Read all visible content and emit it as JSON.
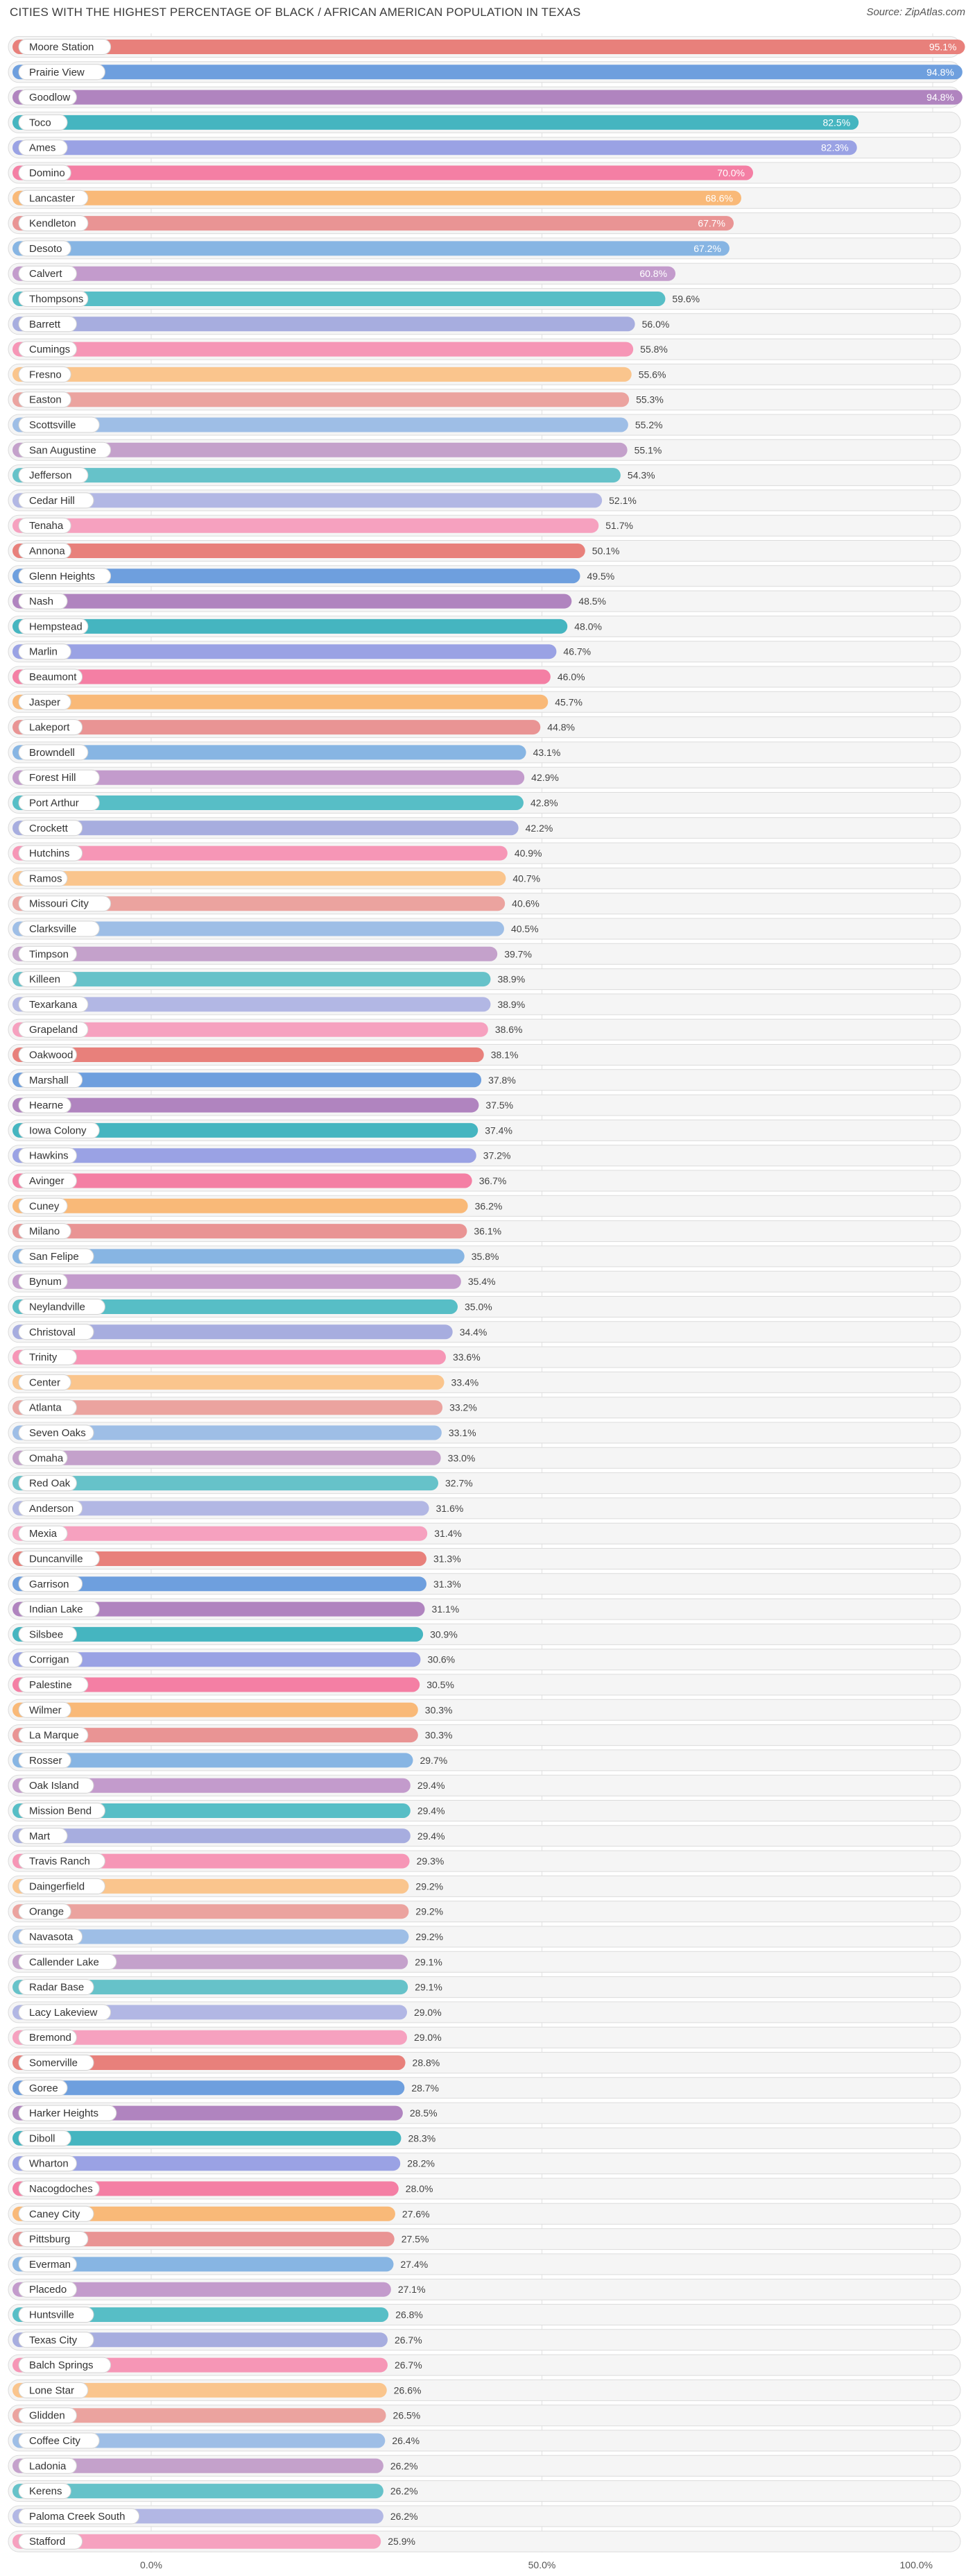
{
  "chart_data": {
    "type": "bar",
    "orientation": "horizontal",
    "title": "CITIES WITH THE HIGHEST PERCENTAGE OF BLACK / AFRICAN AMERICAN POPULATION IN TEXAS",
    "source": "Source: ZipAtlas.com",
    "xlim": [
      0,
      100
    ],
    "x_ticks": [
      "0.0%",
      "50.0%",
      "100.0%"
    ],
    "categories": [
      "Moore Station",
      "Prairie View",
      "Goodlow",
      "Toco",
      "Ames",
      "Domino",
      "Lancaster",
      "Kendleton",
      "Desoto",
      "Calvert",
      "Thompsons",
      "Barrett",
      "Cumings",
      "Fresno",
      "Easton",
      "Scottsville",
      "San Augustine",
      "Jefferson",
      "Cedar Hill",
      "Tenaha",
      "Annona",
      "Glenn Heights",
      "Nash",
      "Hempstead",
      "Marlin",
      "Beaumont",
      "Jasper",
      "Lakeport",
      "Browndell",
      "Forest Hill",
      "Port Arthur",
      "Crockett",
      "Hutchins",
      "Ramos",
      "Missouri City",
      "Clarksville",
      "Timpson",
      "Killeen",
      "Texarkana",
      "Grapeland",
      "Oakwood",
      "Marshall",
      "Hearne",
      "Iowa Colony",
      "Hawkins",
      "Avinger",
      "Cuney",
      "Milano",
      "San Felipe",
      "Bynum",
      "Neylandville",
      "Christoval",
      "Trinity",
      "Center",
      "Atlanta",
      "Seven Oaks",
      "Omaha",
      "Red Oak",
      "Anderson",
      "Mexia",
      "Duncanville",
      "Garrison",
      "Indian Lake",
      "Silsbee",
      "Corrigan",
      "Palestine",
      "Wilmer",
      "La Marque",
      "Rosser",
      "Oak Island",
      "Mission Bend",
      "Mart",
      "Travis Ranch",
      "Daingerfield",
      "Orange",
      "Navasota",
      "Callender Lake",
      "Radar Base",
      "Lacy Lakeview",
      "Bremond",
      "Somerville",
      "Goree",
      "Harker Heights",
      "Diboll",
      "Wharton",
      "Nacogdoches",
      "Caney City",
      "Pittsburg",
      "Everman",
      "Placedo",
      "Huntsville",
      "Texas City",
      "Balch Springs",
      "Lone Star",
      "Glidden",
      "Coffee City",
      "Ladonia",
      "Kerens",
      "Paloma Creek South",
      "Stafford"
    ],
    "values": [
      95.1,
      94.8,
      94.8,
      82.5,
      82.3,
      70.0,
      68.6,
      67.7,
      67.2,
      60.8,
      59.6,
      56.0,
      55.8,
      55.6,
      55.3,
      55.2,
      55.1,
      54.3,
      52.1,
      51.7,
      50.1,
      49.5,
      48.5,
      48.0,
      46.7,
      46.0,
      45.7,
      44.8,
      43.1,
      42.9,
      42.8,
      42.2,
      40.9,
      40.7,
      40.6,
      40.5,
      39.7,
      38.9,
      38.9,
      38.6,
      38.1,
      37.8,
      37.5,
      37.4,
      37.2,
      36.7,
      36.2,
      36.1,
      35.8,
      35.4,
      35.0,
      34.4,
      33.6,
      33.4,
      33.2,
      33.1,
      33.0,
      32.7,
      31.6,
      31.4,
      31.3,
      31.3,
      31.1,
      30.9,
      30.6,
      30.5,
      30.3,
      30.3,
      29.7,
      29.4,
      29.4,
      29.4,
      29.3,
      29.2,
      29.2,
      29.2,
      29.1,
      29.1,
      29.0,
      29.0,
      28.8,
      28.7,
      28.5,
      28.3,
      28.2,
      28.0,
      27.6,
      27.5,
      27.4,
      27.1,
      26.8,
      26.7,
      26.7,
      26.6,
      26.5,
      26.4,
      26.2,
      26.2,
      26.2,
      25.9
    ],
    "value_labels": [
      "95.1%",
      "94.8%",
      "94.8%",
      "82.5%",
      "82.3%",
      "70.0%",
      "68.6%",
      "67.7%",
      "67.2%",
      "60.8%",
      "59.6%",
      "56.0%",
      "55.8%",
      "55.6%",
      "55.3%",
      "55.2%",
      "55.1%",
      "54.3%",
      "52.1%",
      "51.7%",
      "50.1%",
      "49.5%",
      "48.5%",
      "48.0%",
      "46.7%",
      "46.0%",
      "45.7%",
      "44.8%",
      "43.1%",
      "42.9%",
      "42.8%",
      "42.2%",
      "40.9%",
      "40.7%",
      "40.6%",
      "40.5%",
      "39.7%",
      "38.9%",
      "38.9%",
      "38.6%",
      "38.1%",
      "37.8%",
      "37.5%",
      "37.4%",
      "37.2%",
      "36.7%",
      "36.2%",
      "36.1%",
      "35.8%",
      "35.4%",
      "35.0%",
      "34.4%",
      "33.6%",
      "33.4%",
      "33.2%",
      "33.1%",
      "33.0%",
      "32.7%",
      "31.6%",
      "31.4%",
      "31.3%",
      "31.3%",
      "31.1%",
      "30.9%",
      "30.6%",
      "30.5%",
      "30.3%",
      "30.3%",
      "29.7%",
      "29.4%",
      "29.4%",
      "29.4%",
      "29.3%",
      "29.2%",
      "29.2%",
      "29.2%",
      "29.1%",
      "29.1%",
      "29.0%",
      "29.0%",
      "28.8%",
      "28.7%",
      "28.5%",
      "28.3%",
      "28.2%",
      "28.0%",
      "27.6%",
      "27.5%",
      "27.4%",
      "27.1%",
      "26.8%",
      "26.7%",
      "26.7%",
      "26.6%",
      "26.5%",
      "26.4%",
      "26.2%",
      "26.2%",
      "26.2%",
      "25.9%"
    ],
    "palette": [
      "#e8807b",
      "#6e9fde",
      "#b084bf",
      "#45b5c0",
      "#9aa2e4",
      "#f47fa4",
      "#f9b978",
      "#e99494",
      "#87b5e3",
      "#c39bcc",
      "#57bec6",
      "#a7addf",
      "#f696b6",
      "#fac58d",
      "#eba39f",
      "#9ebee6",
      "#c4a1cb",
      "#66c2c9",
      "#b2b7e4",
      "#f6a1bf"
    ]
  }
}
